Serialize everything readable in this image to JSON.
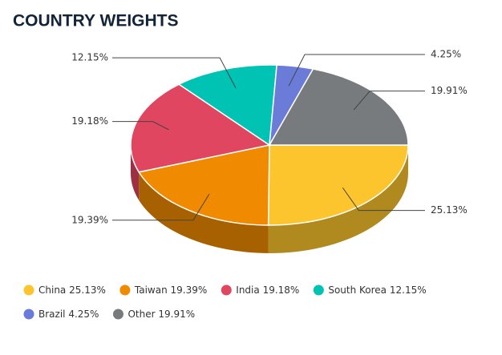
{
  "chart_data": {
    "type": "pie",
    "title": "COUNTRY WEIGHTS",
    "categories": [
      "China",
      "Taiwan",
      "India",
      "South Korea",
      "Brazil",
      "Other"
    ],
    "values": [
      25.13,
      19.39,
      19.18,
      12.15,
      4.25,
      19.91
    ],
    "value_labels": [
      "25.13%",
      "19.39%",
      "19.18%",
      "12.15%",
      "4.25%",
      "19.91%"
    ],
    "colors": [
      "#fcc42d",
      "#f08a00",
      "#e04660",
      "#00c3b4",
      "#6b7bd8",
      "#777b7e"
    ]
  }
}
